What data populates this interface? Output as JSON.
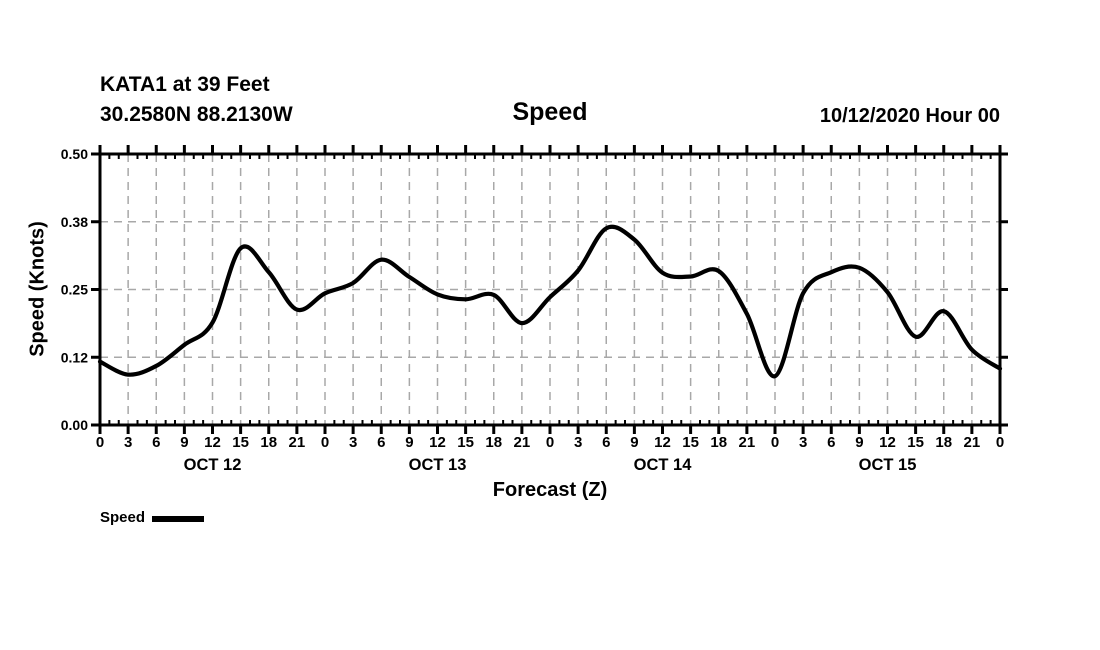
{
  "header": {
    "station": "KATA1 at 39 Feet",
    "coordinates": "30.2580N 88.2130W",
    "run_label": "10/12/2020 Hour 00"
  },
  "colors": {
    "line": "#000000",
    "grid": "#a8a8a8",
    "axis": "#000000",
    "text": "#000000",
    "background": "#ffffff"
  },
  "chart_data": {
    "type": "line",
    "title": "Speed",
    "xlabel": "Forecast (Z)",
    "ylabel": "Speed (Knots)",
    "ylim": [
      0.0,
      0.5
    ],
    "x_hours_range": [
      0,
      96
    ],
    "x_tick_step_hours": 3,
    "grid": true,
    "legend_position": "bottom-left",
    "y_ticks": [
      {
        "value": 0.0,
        "label": "0.00"
      },
      {
        "value": 0.125,
        "label": "0.12"
      },
      {
        "value": 0.25,
        "label": "0.25"
      },
      {
        "value": 0.375,
        "label": "0.38"
      },
      {
        "value": 0.5,
        "label": "0.50"
      }
    ],
    "x_tick_labels": [
      "0",
      "3",
      "6",
      "9",
      "12",
      "15",
      "18",
      "21",
      "0",
      "3",
      "6",
      "9",
      "12",
      "15",
      "18",
      "21",
      "0",
      "3",
      "6",
      "9",
      "12",
      "15",
      "18",
      "21",
      "0",
      "3",
      "6",
      "9",
      "12",
      "15",
      "18",
      "21",
      "0"
    ],
    "day_labels": [
      {
        "label": "OCT 12",
        "center_hour": 12
      },
      {
        "label": "OCT 13",
        "center_hour": 36
      },
      {
        "label": "OCT 14",
        "center_hour": 60
      },
      {
        "label": "OCT 15",
        "center_hour": 84
      }
    ],
    "legend": {
      "label": "Speed"
    },
    "series": [
      {
        "name": "Speed",
        "color": "#000000",
        "points_hour_knots": [
          [
            0,
            0.117
          ],
          [
            3,
            0.093
          ],
          [
            6,
            0.109
          ],
          [
            9,
            0.148
          ],
          [
            12,
            0.189
          ],
          [
            15,
            0.326
          ],
          [
            18,
            0.282
          ],
          [
            21,
            0.213
          ],
          [
            24,
            0.243
          ],
          [
            27,
            0.262
          ],
          [
            30,
            0.305
          ],
          [
            33,
            0.273
          ],
          [
            36,
            0.241
          ],
          [
            39,
            0.232
          ],
          [
            42,
            0.24
          ],
          [
            45,
            0.188
          ],
          [
            48,
            0.236
          ],
          [
            51,
            0.285
          ],
          [
            54,
            0.363
          ],
          [
            57,
            0.342
          ],
          [
            60,
            0.281
          ],
          [
            63,
            0.274
          ],
          [
            66,
            0.284
          ],
          [
            69,
            0.205
          ],
          [
            72,
            0.09
          ],
          [
            75,
            0.243
          ],
          [
            78,
            0.282
          ],
          [
            81,
            0.29
          ],
          [
            84,
            0.245
          ],
          [
            87,
            0.163
          ],
          [
            90,
            0.21
          ],
          [
            93,
            0.139
          ],
          [
            96,
            0.104
          ]
        ]
      }
    ]
  }
}
